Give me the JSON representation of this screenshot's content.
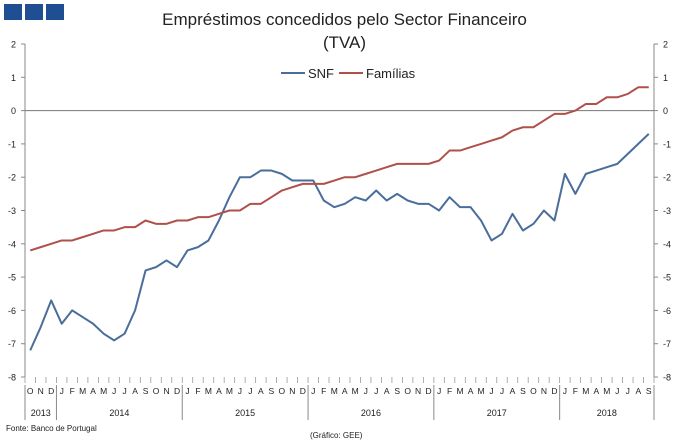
{
  "header": {
    "title_line1": "Empréstimos concedidos pelo Sector Financeiro",
    "title_line2": "(TVA)"
  },
  "footer": {
    "source": "Fonte: Banco de Portugal",
    "credit": "(Gráfico: GEE)"
  },
  "colors": {
    "snf": "#4a6e9b",
    "familias": "#b0504a",
    "logo": "#1f4e93"
  },
  "chart_data": {
    "type": "line",
    "title": "Empréstimos concedidos pelo Sector Financeiro (TVA)",
    "ylim": [
      -8,
      2
    ],
    "yticks": [
      "-8",
      "-7",
      "-6",
      "-5",
      "-4",
      "-3",
      "-2",
      "-1",
      "0",
      "1",
      "2"
    ],
    "legend": [
      "SNF",
      "Famílias"
    ],
    "legend_position": "top-center",
    "month_labels": [
      "O",
      "N",
      "D",
      "J",
      "F",
      "M",
      "A",
      "M",
      "J",
      "J",
      "A",
      "S",
      "O",
      "N",
      "D",
      "J",
      "F",
      "M",
      "A",
      "M",
      "J",
      "J",
      "A",
      "S",
      "O",
      "N",
      "D",
      "J",
      "F",
      "M",
      "A",
      "M",
      "J",
      "J",
      "A",
      "S",
      "O",
      "N",
      "D",
      "J",
      "F",
      "M",
      "A",
      "M",
      "J",
      "J",
      "A",
      "S",
      "O",
      "N",
      "D",
      "J",
      "F",
      "M",
      "A",
      "M",
      "J",
      "J",
      "A",
      "S"
    ],
    "years": [
      {
        "label": "2013",
        "months": 3
      },
      {
        "label": "2014",
        "months": 12
      },
      {
        "label": "2015",
        "months": 12
      },
      {
        "label": "2016",
        "months": 12
      },
      {
        "label": "2017",
        "months": 12
      },
      {
        "label": "2018",
        "months": 9
      }
    ],
    "series": [
      {
        "name": "SNF",
        "values": [
          -7.2,
          -6.5,
          -5.7,
          -6.4,
          -6.0,
          -6.2,
          -6.4,
          -6.7,
          -6.9,
          -6.7,
          -6.0,
          -4.8,
          -4.7,
          -4.5,
          -4.7,
          -4.2,
          -4.1,
          -3.9,
          -3.3,
          -2.6,
          -2.0,
          -2.0,
          -1.8,
          -1.8,
          -1.9,
          -2.1,
          -2.1,
          -2.1,
          -2.7,
          -2.9,
          -2.8,
          -2.6,
          -2.7,
          -2.4,
          -2.7,
          -2.5,
          -2.7,
          -2.8,
          -2.8,
          -3.0,
          -2.6,
          -2.9,
          -2.9,
          -3.3,
          -3.9,
          -3.7,
          -3.1,
          -3.6,
          -3.4,
          -3.0,
          -3.3,
          -1.9,
          -2.5,
          -1.9,
          -1.8,
          -1.7,
          -1.6,
          -1.3,
          -1.0,
          -0.7
        ]
      },
      {
        "name": "Famílias",
        "values": [
          -4.2,
          -4.1,
          -4.0,
          -3.9,
          -3.9,
          -3.8,
          -3.7,
          -3.6,
          -3.6,
          -3.5,
          -3.5,
          -3.3,
          -3.4,
          -3.4,
          -3.3,
          -3.3,
          -3.2,
          -3.2,
          -3.1,
          -3.0,
          -3.0,
          -2.8,
          -2.8,
          -2.6,
          -2.4,
          -2.3,
          -2.2,
          -2.2,
          -2.2,
          -2.1,
          -2.0,
          -2.0,
          -1.9,
          -1.8,
          -1.7,
          -1.6,
          -1.6,
          -1.6,
          -1.6,
          -1.5,
          -1.2,
          -1.2,
          -1.1,
          -1.0,
          -0.9,
          -0.8,
          -0.6,
          -0.5,
          -0.5,
          -0.3,
          -0.1,
          -0.1,
          0.0,
          0.2,
          0.2,
          0.4,
          0.4,
          0.5,
          0.7,
          0.7
        ]
      }
    ]
  }
}
